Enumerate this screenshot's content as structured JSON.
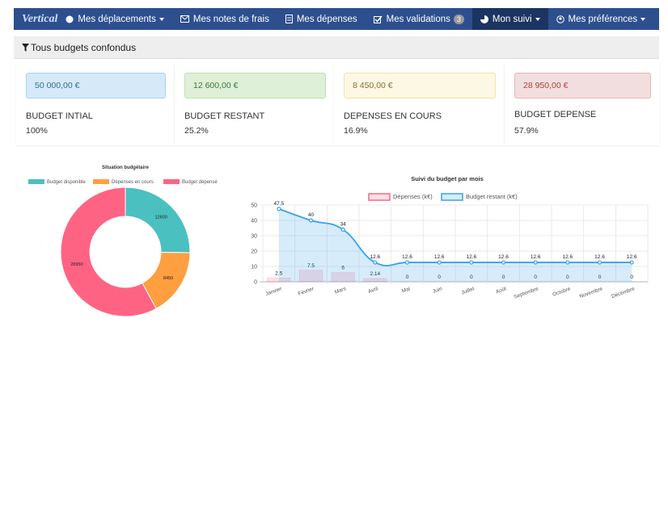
{
  "brand": "Vertical",
  "nav": {
    "items": [
      "Mes déplacements",
      "Mes notes de frais",
      "Mes dépenses",
      "Mes validations",
      "Mon suivi",
      "Mes préférences"
    ],
    "badge": "3"
  },
  "filter": "Tous budgets confondus",
  "cards": [
    {
      "amount": "50 000,00 €",
      "title": "BUDGET INTIAL",
      "percent": "100%"
    },
    {
      "amount": "12 600,00 €",
      "title": "BUDGET RESTANT",
      "percent": "25.2%"
    },
    {
      "amount": "8 450,00 €",
      "title": "DEPENSES EN COURS",
      "percent": "16.9%"
    },
    {
      "amount": "28 950,00 €",
      "title": "BUDGET DEPENSE",
      "percent": "57.9%"
    }
  ],
  "chart_data": [
    {
      "type": "doughnut",
      "title": "Situation budgétaire",
      "categories": [
        "Budget disponible",
        "Dépenses en cours",
        "Budget dépensé"
      ],
      "values": [
        12600,
        8450,
        28950
      ],
      "colors": [
        "#4bc0c0",
        "#ff9f40",
        "#ff6384"
      ]
    },
    {
      "type": "combo",
      "title": "Suivi du budget par mois",
      "categories": [
        "Janvier",
        "Février",
        "Mars",
        "Avril",
        "Mai",
        "Juin",
        "Juillet",
        "Août",
        "Septembre",
        "Octobre",
        "Novembre",
        "Décembre"
      ],
      "series": [
        {
          "name": "Dépenses (k€)",
          "type": "bar",
          "color": "#ff6384",
          "values": [
            2.5,
            7.5,
            6,
            2.14,
            0,
            0,
            0,
            0,
            0,
            0,
            0,
            0
          ]
        },
        {
          "name": "Budget restant (k€)",
          "type": "line",
          "color": "#36a2eb",
          "values": [
            47.5,
            40,
            34,
            12.6,
            12.6,
            12.6,
            12.6,
            12.6,
            12.6,
            12.6,
            12.6,
            12.6
          ]
        }
      ],
      "ylim": [
        0,
        50
      ],
      "yticks": [
        0,
        10,
        20,
        30,
        40,
        50
      ],
      "grid": true
    }
  ]
}
